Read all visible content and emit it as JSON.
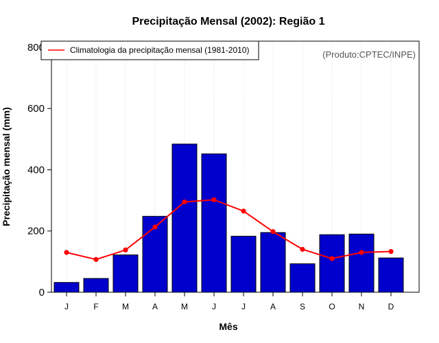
{
  "chart_data": {
    "type": "bar",
    "title": "Precipitação Mensal (2002): Região 1",
    "xlabel": "Mês",
    "ylabel": "Precipitação mensal (mm)",
    "ylim": [
      0,
      820
    ],
    "yticks": [
      0,
      200,
      400,
      600,
      800
    ],
    "categories": [
      "J",
      "F",
      "M",
      "A",
      "M",
      "J",
      "J",
      "A",
      "S",
      "O",
      "N",
      "D"
    ],
    "grid": "vertical dotted",
    "series": [
      {
        "name": "Precipitação mensal (2002)",
        "kind": "bar",
        "color": "#0000cd",
        "values": [
          32,
          45,
          122,
          248,
          484,
          452,
          183,
          195,
          93,
          188,
          190,
          112
        ]
      },
      {
        "name": "Climatologia da precipitação mensal (1981-2010)",
        "kind": "line",
        "color": "#ff0000",
        "values": [
          130,
          107,
          138,
          213,
          295,
          302,
          265,
          198,
          140,
          110,
          130,
          133
        ]
      }
    ],
    "legend": {
      "position": "top-left",
      "label": "Climatologia da precipitação mensal (1981-2010)"
    },
    "source_note": "(Produto:CPTEC/INPE)"
  }
}
